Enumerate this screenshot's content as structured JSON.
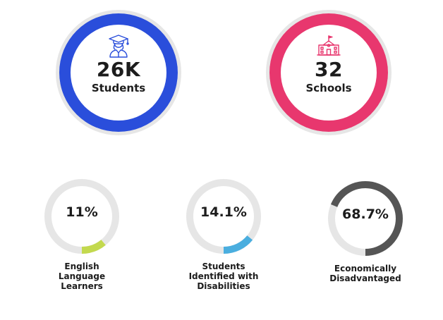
{
  "big_stats": {
    "students": {
      "value": "26K",
      "label": "Students",
      "icon": "graduate-icon",
      "color": "#2a4edb"
    },
    "schools": {
      "value": "32",
      "label": "Schools",
      "icon": "school-building-icon",
      "color": "#e8376e"
    }
  },
  "small_stats": [
    {
      "value": "11%",
      "percent": 11,
      "label": "English\nLanguage\nLearners",
      "color": "#c3d94e"
    },
    {
      "value": "14.1%",
      "percent": 14.1,
      "label": "Students\nIdentified with\nDisabilities",
      "color": "#4aaedf"
    },
    {
      "value": "68.7%",
      "percent": 68.7,
      "label": "Economically\nDisadvantaged",
      "color": "#555555"
    }
  ],
  "track_color": "#e6e6e6"
}
